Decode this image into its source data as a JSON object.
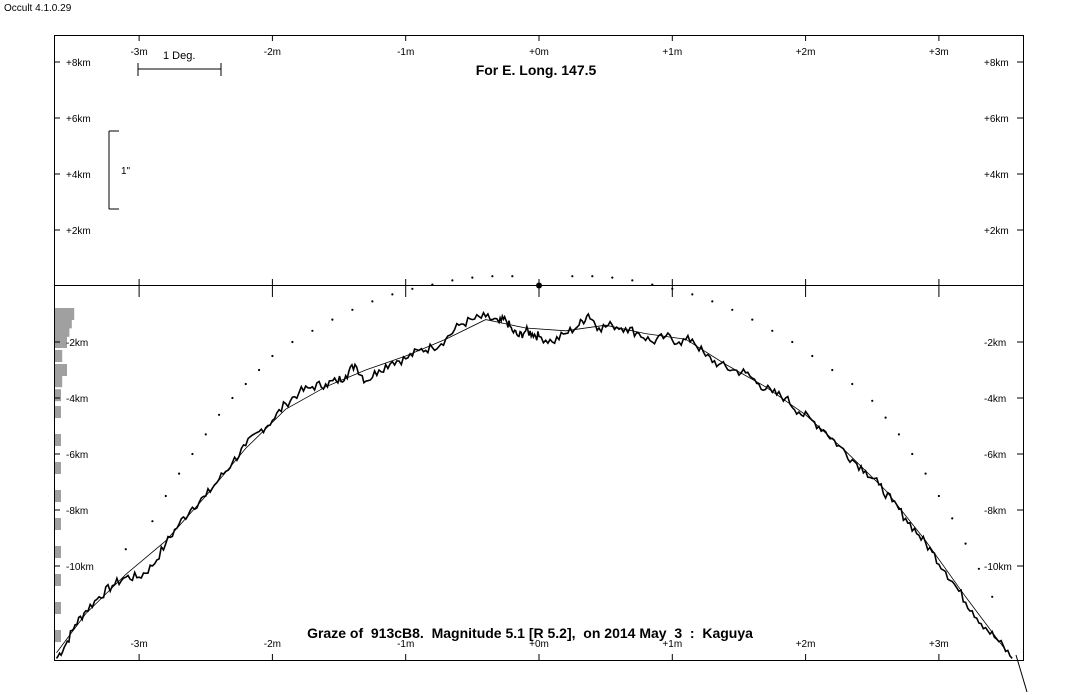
{
  "app": {
    "title": "Occult 4.1.0.29"
  },
  "chart_data": {
    "type": "line",
    "title": "For E. Long. 147.5",
    "caption": "Graze of  913cB8.  Magnitude 5.1 [R 5.2],  on 2014 May  3  :  Kaguya",
    "scale_bar_deg": "1 Deg.",
    "scale_bar_arcsec": "1\"",
    "x_ticks": [
      {
        "value": -3,
        "label": "-3m"
      },
      {
        "value": -2,
        "label": "-2m"
      },
      {
        "value": -1,
        "label": "-1m"
      },
      {
        "value": 0,
        "label": "+0m"
      },
      {
        "value": 1,
        "label": "+1m"
      },
      {
        "value": 2,
        "label": "+2m"
      },
      {
        "value": 3,
        "label": "+3m"
      }
    ],
    "y_ticks_upper": [
      {
        "value": 8,
        "label": "+8km"
      },
      {
        "value": 6,
        "label": "+6km"
      },
      {
        "value": 4,
        "label": "+4km"
      },
      {
        "value": 2,
        "label": "+2km"
      }
    ],
    "y_ticks_lower": [
      {
        "value": -2,
        "label": "-2km"
      },
      {
        "value": -4,
        "label": "-4km"
      },
      {
        "value": -6,
        "label": "-6km"
      },
      {
        "value": -8,
        "label": "-8km"
      },
      {
        "value": -10,
        "label": "-10km"
      }
    ],
    "xlim": [
      -3.65,
      3.65
    ],
    "ylim": [
      -13.4,
      9
    ],
    "limb_profile": [
      [
        -3.62,
        -13.3
      ],
      [
        -3.55,
        -12.8
      ],
      [
        -3.48,
        -12.1
      ],
      [
        -3.4,
        -11.6
      ],
      [
        -3.3,
        -11.1
      ],
      [
        -3.2,
        -10.7
      ],
      [
        -3.1,
        -10.4
      ],
      [
        -3.0,
        -10.4
      ],
      [
        -2.9,
        -10.0
      ],
      [
        -2.8,
        -9.2
      ],
      [
        -2.7,
        -8.5
      ],
      [
        -2.6,
        -7.9
      ],
      [
        -2.5,
        -7.5
      ],
      [
        -2.4,
        -6.9
      ],
      [
        -2.3,
        -6.3
      ],
      [
        -2.2,
        -5.7
      ],
      [
        -2.1,
        -5.2
      ],
      [
        -2.0,
        -4.8
      ],
      [
        -1.9,
        -4.2
      ],
      [
        -1.8,
        -3.8
      ],
      [
        -1.7,
        -3.6
      ],
      [
        -1.6,
        -3.5
      ],
      [
        -1.52,
        -3.4
      ],
      [
        -1.45,
        -3.2
      ],
      [
        -1.38,
        -2.8
      ],
      [
        -1.3,
        -3.4
      ],
      [
        -1.2,
        -3.0
      ],
      [
        -1.1,
        -2.7
      ],
      [
        -1.0,
        -2.6
      ],
      [
        -0.9,
        -2.3
      ],
      [
        -0.8,
        -2.2
      ],
      [
        -0.7,
        -1.9
      ],
      [
        -0.6,
        -1.4
      ],
      [
        -0.5,
        -1.2
      ],
      [
        -0.4,
        -1.1
      ],
      [
        -0.3,
        -1.3
      ],
      [
        -0.25,
        -1.2
      ],
      [
        -0.2,
        -1.6
      ],
      [
        -0.15,
        -1.8
      ],
      [
        -0.1,
        -1.6
      ],
      [
        -0.05,
        -1.7
      ],
      [
        0.0,
        -1.8
      ],
      [
        0.1,
        -2.0
      ],
      [
        0.2,
        -1.7
      ],
      [
        0.3,
        -1.4
      ],
      [
        0.37,
        -1.0
      ],
      [
        0.45,
        -1.5
      ],
      [
        0.55,
        -1.4
      ],
      [
        0.65,
        -1.5
      ],
      [
        0.75,
        -1.7
      ],
      [
        0.85,
        -2.0
      ],
      [
        0.95,
        -1.8
      ],
      [
        1.05,
        -2.0
      ],
      [
        1.15,
        -1.9
      ],
      [
        1.25,
        -2.5
      ],
      [
        1.35,
        -2.8
      ],
      [
        1.45,
        -3.0
      ],
      [
        1.55,
        -3.1
      ],
      [
        1.65,
        -3.5
      ],
      [
        1.75,
        -3.8
      ],
      [
        1.85,
        -4.0
      ],
      [
        1.95,
        -4.5
      ],
      [
        2.05,
        -4.8
      ],
      [
        2.15,
        -5.2
      ],
      [
        2.25,
        -5.7
      ],
      [
        2.35,
        -6.2
      ],
      [
        2.45,
        -6.6
      ],
      [
        2.55,
        -7.1
      ],
      [
        2.65,
        -7.7
      ],
      [
        2.75,
        -8.3
      ],
      [
        2.85,
        -8.9
      ],
      [
        2.95,
        -9.5
      ],
      [
        3.05,
        -10.2
      ],
      [
        3.15,
        -10.9
      ],
      [
        3.25,
        -11.6
      ],
      [
        3.35,
        -12.2
      ],
      [
        3.45,
        -12.7
      ],
      [
        3.55,
        -13.3
      ]
    ],
    "mean_limb": [
      [
        -3.62,
        -13.1
      ],
      [
        -3.4,
        -11.7
      ],
      [
        -3.1,
        -10.3
      ],
      [
        -2.8,
        -9.1
      ],
      [
        -2.5,
        -7.5
      ],
      [
        -2.2,
        -5.8
      ],
      [
        -1.9,
        -4.4
      ],
      [
        -1.6,
        -3.6
      ],
      [
        -1.3,
        -3.0
      ],
      [
        -1.0,
        -2.5
      ],
      [
        -0.7,
        -1.9
      ],
      [
        -0.4,
        -1.2
      ],
      [
        -0.1,
        -1.5
      ],
      [
        0.2,
        -1.6
      ],
      [
        0.5,
        -1.4
      ],
      [
        0.8,
        -1.7
      ],
      [
        1.1,
        -1.9
      ],
      [
        1.4,
        -2.8
      ],
      [
        1.7,
        -3.6
      ],
      [
        2.0,
        -4.6
      ],
      [
        2.3,
        -5.9
      ],
      [
        2.6,
        -7.3
      ],
      [
        2.9,
        -9.1
      ],
      [
        3.2,
        -11.1
      ],
      [
        3.5,
        -13.0
      ]
    ],
    "dotted_limb": [
      [
        -3.1,
        -9.4
      ],
      [
        -2.9,
        -8.4
      ],
      [
        -2.8,
        -7.5
      ],
      [
        -2.7,
        -6.7
      ],
      [
        -2.6,
        -6.0
      ],
      [
        -2.5,
        -5.3
      ],
      [
        -2.4,
        -4.6
      ],
      [
        -2.3,
        -4.0
      ],
      [
        -2.2,
        -3.5
      ],
      [
        -2.1,
        -3.0
      ],
      [
        -2.0,
        -2.5
      ],
      [
        -1.85,
        -2.0
      ],
      [
        -1.7,
        -1.6
      ],
      [
        -1.55,
        -1.2
      ],
      [
        -1.4,
        -0.85
      ],
      [
        -1.25,
        -0.55
      ],
      [
        -1.1,
        -0.3
      ],
      [
        -0.95,
        -0.1
      ],
      [
        -0.8,
        0.05
      ],
      [
        -0.65,
        0.2
      ],
      [
        -0.5,
        0.3
      ],
      [
        -0.35,
        0.35
      ],
      [
        -0.2,
        0.35
      ],
      [
        0.25,
        0.35
      ],
      [
        0.4,
        0.35
      ],
      [
        0.55,
        0.3
      ],
      [
        0.7,
        0.2
      ],
      [
        0.85,
        0.05
      ],
      [
        1.0,
        -0.1
      ],
      [
        1.15,
        -0.3
      ],
      [
        1.3,
        -0.55
      ],
      [
        1.45,
        -0.85
      ],
      [
        1.6,
        -1.2
      ],
      [
        1.75,
        -1.6
      ],
      [
        1.9,
        -2.0
      ],
      [
        2.05,
        -2.5
      ],
      [
        2.2,
        -3.0
      ],
      [
        2.35,
        -3.5
      ],
      [
        2.5,
        -4.1
      ],
      [
        2.6,
        -4.7
      ],
      [
        2.7,
        -5.3
      ],
      [
        2.8,
        -6.0
      ],
      [
        2.9,
        -6.7
      ],
      [
        3.0,
        -7.5
      ],
      [
        3.1,
        -8.3
      ],
      [
        3.2,
        -9.2
      ],
      [
        3.3,
        -10.1
      ],
      [
        3.4,
        -11.1
      ]
    ],
    "histogram": [
      {
        "y": -1.0,
        "w": 1.6
      },
      {
        "y": -1.3,
        "w": 1.4
      },
      {
        "y": -1.6,
        "w": 1.2
      },
      {
        "y": -2.0,
        "w": 1.0
      },
      {
        "y": -2.5,
        "w": 0.6
      },
      {
        "y": -3.0,
        "w": 1.0
      },
      {
        "y": -3.4,
        "w": 0.6
      },
      {
        "y": -3.9,
        "w": 0.5
      },
      {
        "y": -4.5,
        "w": 0.5
      },
      {
        "y": -5.5,
        "w": 0.5
      },
      {
        "y": -6.5,
        "w": 0.5
      },
      {
        "y": -7.5,
        "w": 0.5
      },
      {
        "y": -8.5,
        "w": 0.5
      },
      {
        "y": -9.5,
        "w": 0.5
      },
      {
        "y": -10.5,
        "w": 0.5
      },
      {
        "y": -11.5,
        "w": 0.5
      },
      {
        "y": -12.5,
        "w": 0.5
      }
    ],
    "center_marker": {
      "x": 0,
      "y": 0
    },
    "colors": {
      "line": "#000000",
      "histogram": "#a0a0a0"
    }
  }
}
